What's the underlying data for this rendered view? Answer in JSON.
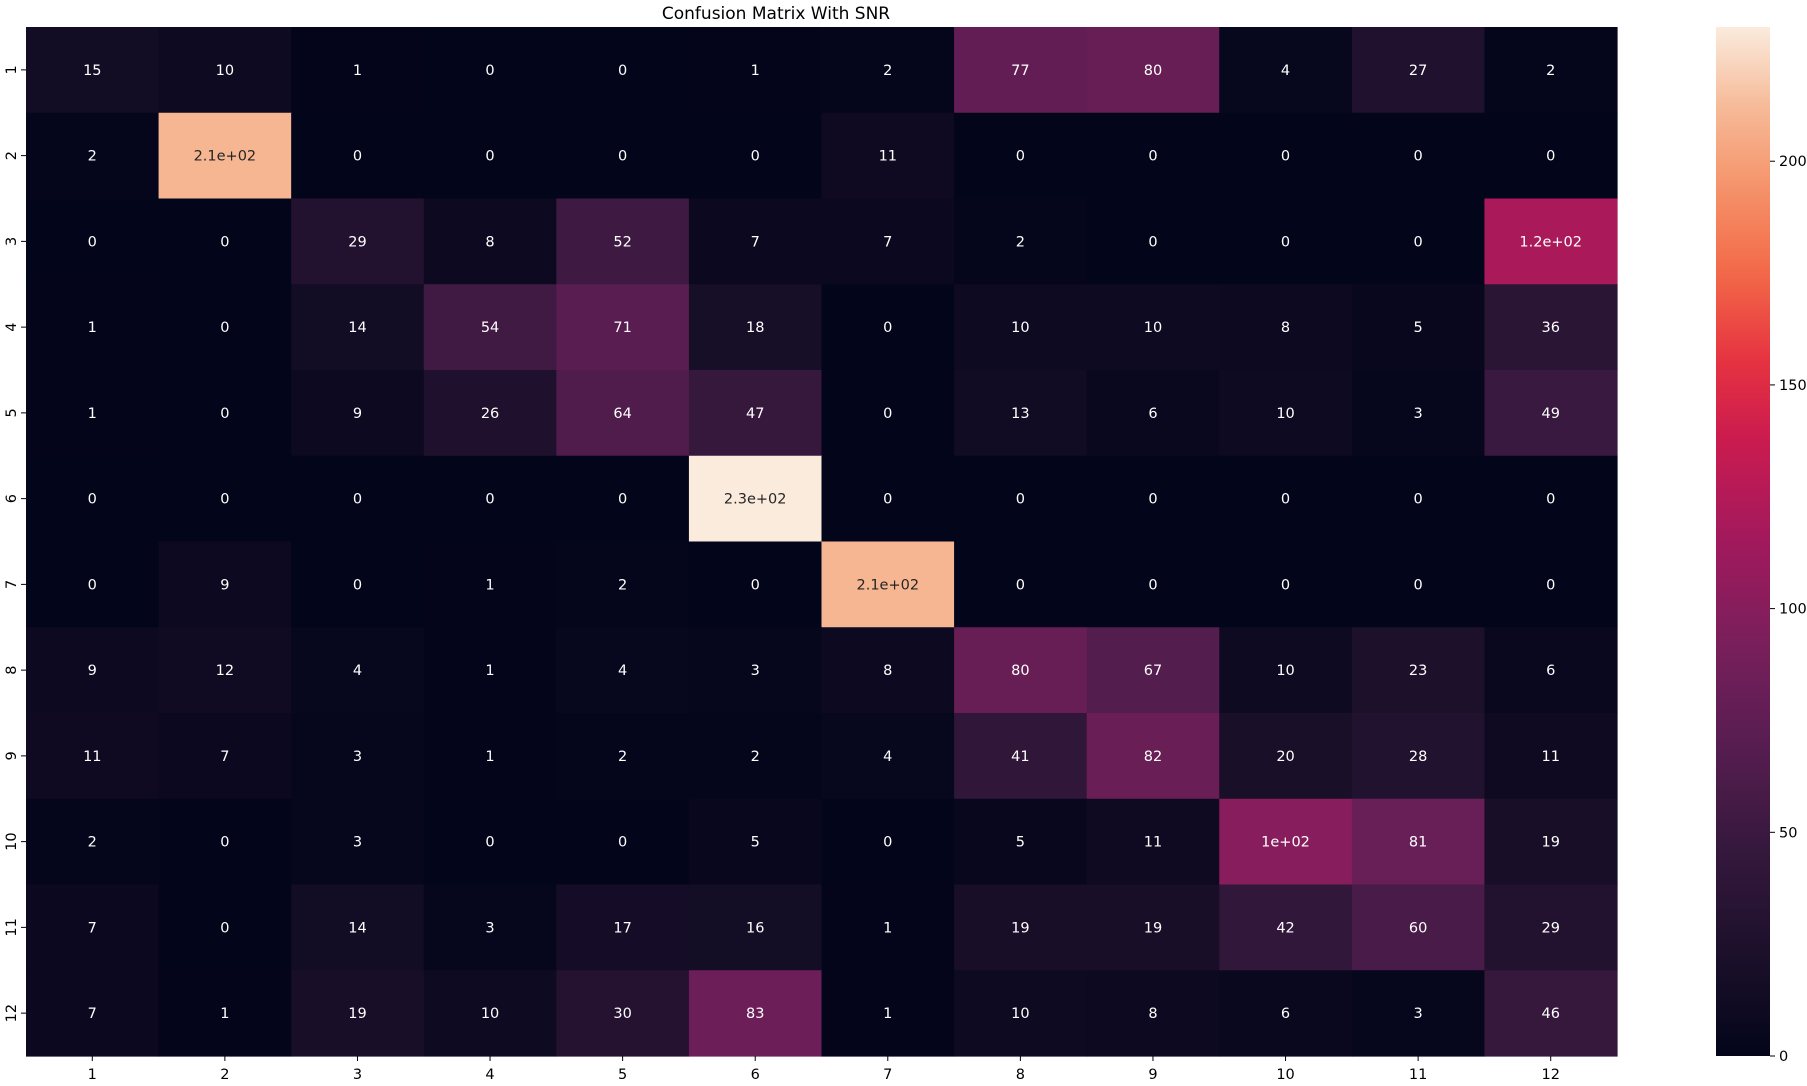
{
  "chart_data": {
    "type": "heatmap",
    "title": "Confusion Matrix With SNR",
    "xlabel": "",
    "ylabel": "",
    "x_categories": [
      "1",
      "2",
      "3",
      "4",
      "5",
      "6",
      "7",
      "8",
      "9",
      "10",
      "11",
      "12"
    ],
    "y_categories": [
      "1",
      "2",
      "3",
      "4",
      "5",
      "6",
      "7",
      "8",
      "9",
      "10",
      "11",
      "12"
    ],
    "values": [
      [
        15,
        10,
        1,
        0,
        0,
        1,
        2,
        77,
        80,
        4,
        27,
        2
      ],
      [
        2,
        210,
        0,
        0,
        0,
        0,
        11,
        0,
        0,
        0,
        0,
        0
      ],
      [
        0,
        0,
        29,
        8,
        52,
        7,
        7,
        2,
        0,
        0,
        0,
        120
      ],
      [
        1,
        0,
        14,
        54,
        71,
        18,
        0,
        10,
        10,
        8,
        5,
        36
      ],
      [
        1,
        0,
        9,
        26,
        64,
        47,
        0,
        13,
        6,
        10,
        3,
        49
      ],
      [
        0,
        0,
        0,
        0,
        0,
        230,
        0,
        0,
        0,
        0,
        0,
        0
      ],
      [
        0,
        9,
        0,
        1,
        2,
        0,
        210,
        0,
        0,
        0,
        0,
        0
      ],
      [
        9,
        12,
        4,
        1,
        4,
        3,
        8,
        80,
        67,
        10,
        23,
        6
      ],
      [
        11,
        7,
        3,
        1,
        2,
        2,
        4,
        41,
        82,
        20,
        28,
        11
      ],
      [
        2,
        0,
        3,
        0,
        0,
        5,
        0,
        5,
        11,
        100,
        81,
        19
      ],
      [
        7,
        0,
        14,
        3,
        17,
        16,
        1,
        19,
        19,
        42,
        60,
        29
      ],
      [
        7,
        1,
        19,
        10,
        30,
        83,
        1,
        10,
        8,
        6,
        3,
        46
      ]
    ],
    "annotations": [
      [
        "15",
        "10",
        "1",
        "0",
        "0",
        "1",
        "2",
        "77",
        "80",
        "4",
        "27",
        "2"
      ],
      [
        "2",
        "2.1e+02",
        "0",
        "0",
        "0",
        "0",
        "11",
        "0",
        "0",
        "0",
        "0",
        "0"
      ],
      [
        "0",
        "0",
        "29",
        "8",
        "52",
        "7",
        "7",
        "2",
        "0",
        "0",
        "0",
        "1.2e+02"
      ],
      [
        "1",
        "0",
        "14",
        "54",
        "71",
        "18",
        "0",
        "10",
        "10",
        "8",
        "5",
        "36"
      ],
      [
        "1",
        "0",
        "9",
        "26",
        "64",
        "47",
        "0",
        "13",
        "6",
        "10",
        "3",
        "49"
      ],
      [
        "0",
        "0",
        "0",
        "0",
        "0",
        "2.3e+02",
        "0",
        "0",
        "0",
        "0",
        "0",
        "0"
      ],
      [
        "0",
        "9",
        "0",
        "1",
        "2",
        "0",
        "2.1e+02",
        "0",
        "0",
        "0",
        "0",
        "0"
      ],
      [
        "9",
        "12",
        "4",
        "1",
        "4",
        "3",
        "8",
        "80",
        "67",
        "10",
        "23",
        "6"
      ],
      [
        "11",
        "7",
        "3",
        "1",
        "2",
        "2",
        "4",
        "41",
        "82",
        "20",
        "28",
        "11"
      ],
      [
        "2",
        "0",
        "3",
        "0",
        "0",
        "5",
        "0",
        "5",
        "11",
        "1e+02",
        "81",
        "19"
      ],
      [
        "7",
        "0",
        "14",
        "3",
        "17",
        "16",
        "1",
        "19",
        "19",
        "42",
        "60",
        "29"
      ],
      [
        "7",
        "1",
        "19",
        "10",
        "30",
        "83",
        "1",
        "10",
        "8",
        "6",
        "3",
        "46"
      ]
    ],
    "colormap": "rocket",
    "vmin": 0,
    "vmax": 230,
    "colorbar_ticks": [
      0,
      50,
      100,
      150,
      200
    ],
    "colorbar_tick_labels": [
      "0",
      "50",
      "100",
      "150",
      "200"
    ],
    "grid": false
  }
}
